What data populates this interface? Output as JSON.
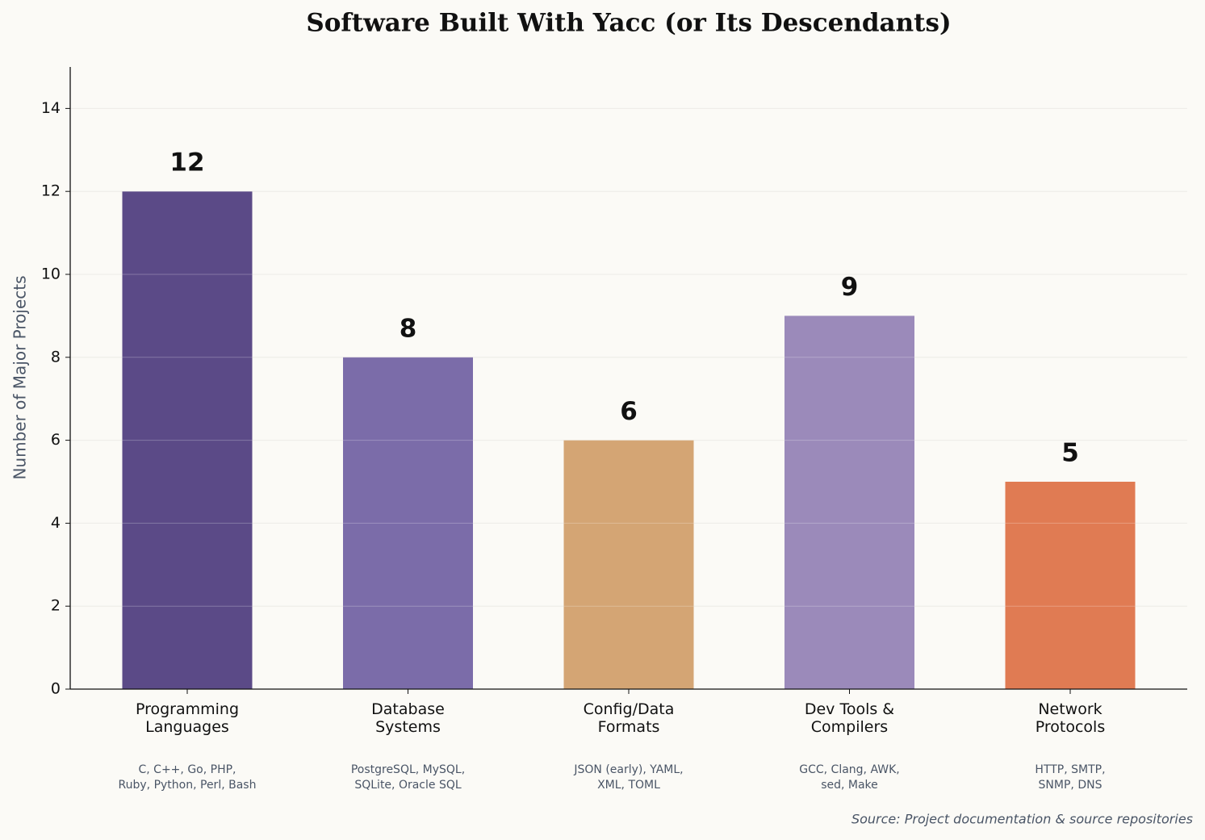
{
  "chart_data": {
    "type": "bar",
    "title": "Software Built With Yacc (or Its Descendants)",
    "y_label": "Number of Major Projects",
    "categories": [
      "Programming\nLanguages",
      "Database\nSystems",
      "Config/Data\nFormats",
      "Dev Tools &\nCompilers",
      "Network\nProtocols"
    ],
    "examples": [
      "C, C++, Go, PHP,\nRuby, Python, Perl, Bash",
      "PostgreSQL, MySQL,\nSQLite, Oracle SQL",
      "JSON (early), YAML,\nXML, TOML",
      "GCC, Clang, AWK,\nsed, Make",
      "HTTP, SMTP,\nSNMP, DNS"
    ],
    "values": [
      12,
      8,
      6,
      9,
      5
    ],
    "colors": [
      "#5b4a87",
      "#7b6ca9",
      "#d4a574",
      "#9b8aba",
      "#e07b53"
    ],
    "ylim": [
      0,
      15
    ],
    "yticks": [
      0,
      2,
      4,
      6,
      8,
      10,
      12,
      14
    ],
    "grid": true,
    "source": "Source: Project documentation & source repositories"
  }
}
